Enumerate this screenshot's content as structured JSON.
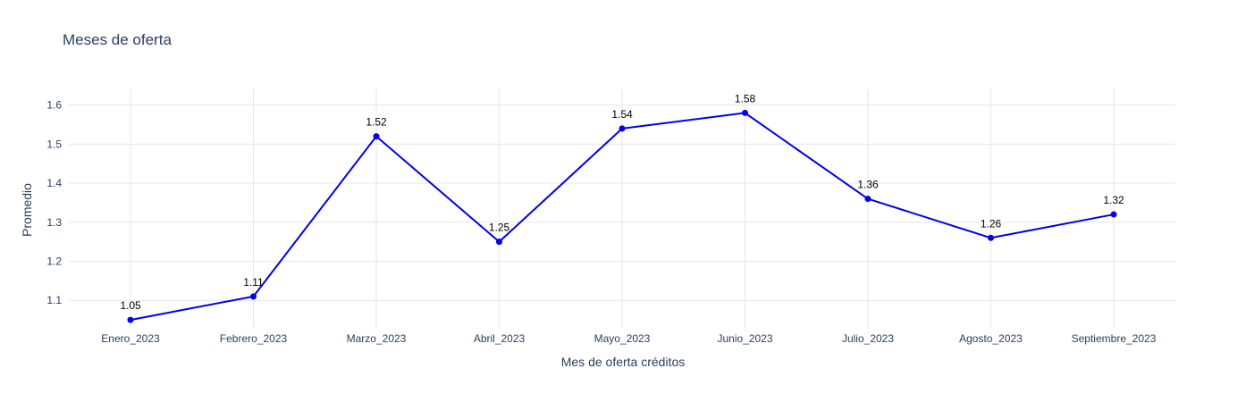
{
  "chart_data": {
    "type": "line",
    "title": "Meses de oferta",
    "xlabel": "Mes de oferta créditos",
    "ylabel": "Promedio",
    "categories": [
      "Enero_2023",
      "Febrero_2023",
      "Marzo_2023",
      "Abril_2023",
      "Mayo_2023",
      "Junio_2023",
      "Julio_2023",
      "Agosto_2023",
      "Septiembre_2023"
    ],
    "series": [
      {
        "name": "Promedio",
        "values": [
          1.05,
          1.11,
          1.52,
          1.25,
          1.54,
          1.58,
          1.36,
          1.26,
          1.32
        ],
        "labels": [
          "1.05",
          "1.11",
          "1.52",
          "1.25",
          "1.54",
          "1.58",
          "1.36",
          "1.26",
          "1.32"
        ],
        "color": "#0000ee"
      }
    ],
    "yticks": [
      1.1,
      1.2,
      1.3,
      1.4,
      1.5,
      1.6
    ],
    "ytick_labels": [
      "1.1",
      "1.2",
      "1.3",
      "1.4",
      "1.5",
      "1.6"
    ],
    "ylim": [
      1.0296,
      1.6404
    ],
    "grid": true
  }
}
